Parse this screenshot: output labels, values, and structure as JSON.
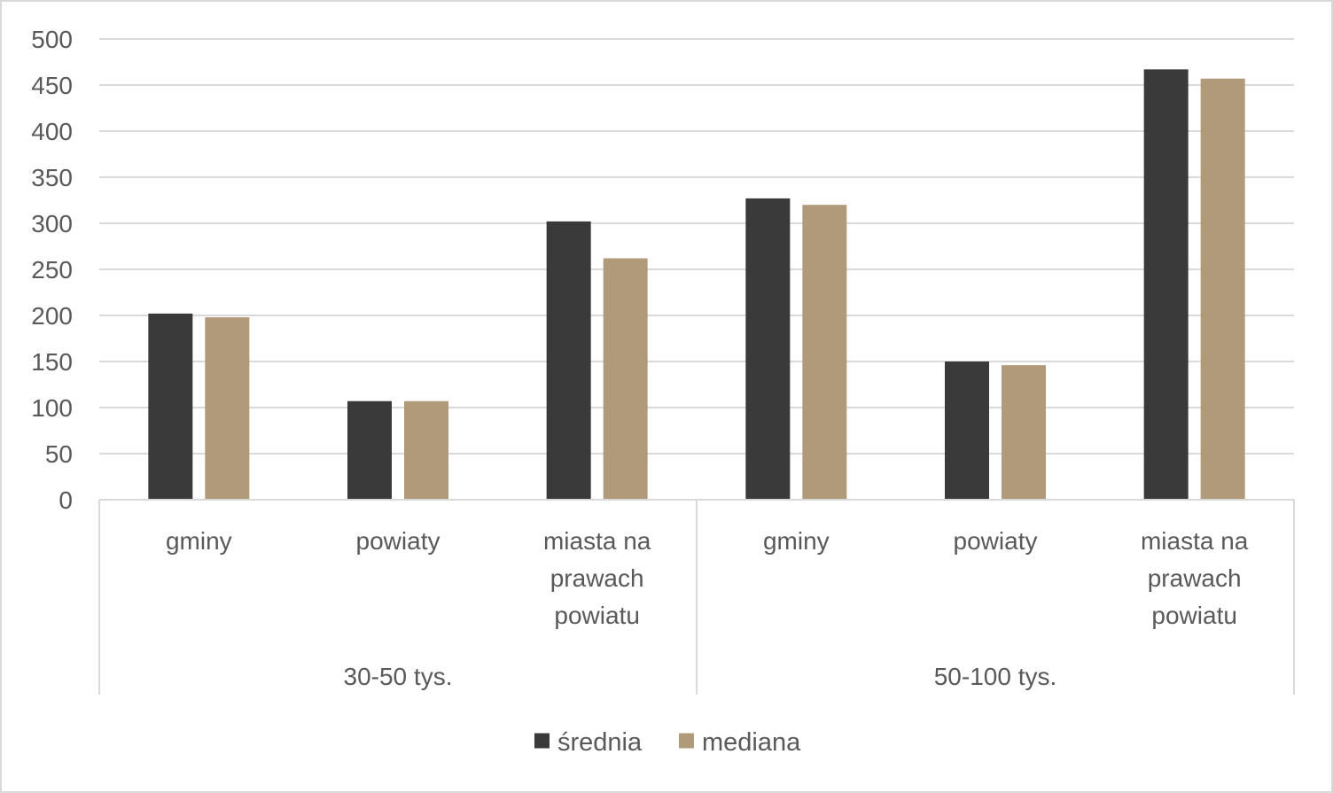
{
  "chart_data": {
    "type": "bar",
    "title": "",
    "xlabel": "",
    "ylabel": "",
    "ylim": [
      0,
      500
    ],
    "yticks": [
      0,
      50,
      100,
      150,
      200,
      250,
      300,
      350,
      400,
      450,
      500
    ],
    "grid": true,
    "legend_position": "bottom",
    "groups": [
      {
        "label": "30-50 tys.",
        "categories": [
          [
            "gminy"
          ],
          [
            "powiaty"
          ],
          [
            "miasta na",
            "prawach",
            "powiatu"
          ]
        ]
      },
      {
        "label": "50-100 tys.",
        "categories": [
          [
            "gminy"
          ],
          [
            "powiaty"
          ],
          [
            "miasta na",
            "prawach",
            "powiatu"
          ]
        ]
      }
    ],
    "series": [
      {
        "name": "średnia",
        "color": "#3a3a3a",
        "values": [
          202,
          107,
          302,
          327,
          150,
          467
        ]
      },
      {
        "name": "mediana",
        "color": "#b09a7a",
        "values": [
          198,
          107,
          262,
          320,
          146,
          457
        ]
      }
    ],
    "colors": {
      "grid": "#d9d9d9",
      "axis": "#d9d9d9",
      "text": "#595959"
    }
  }
}
